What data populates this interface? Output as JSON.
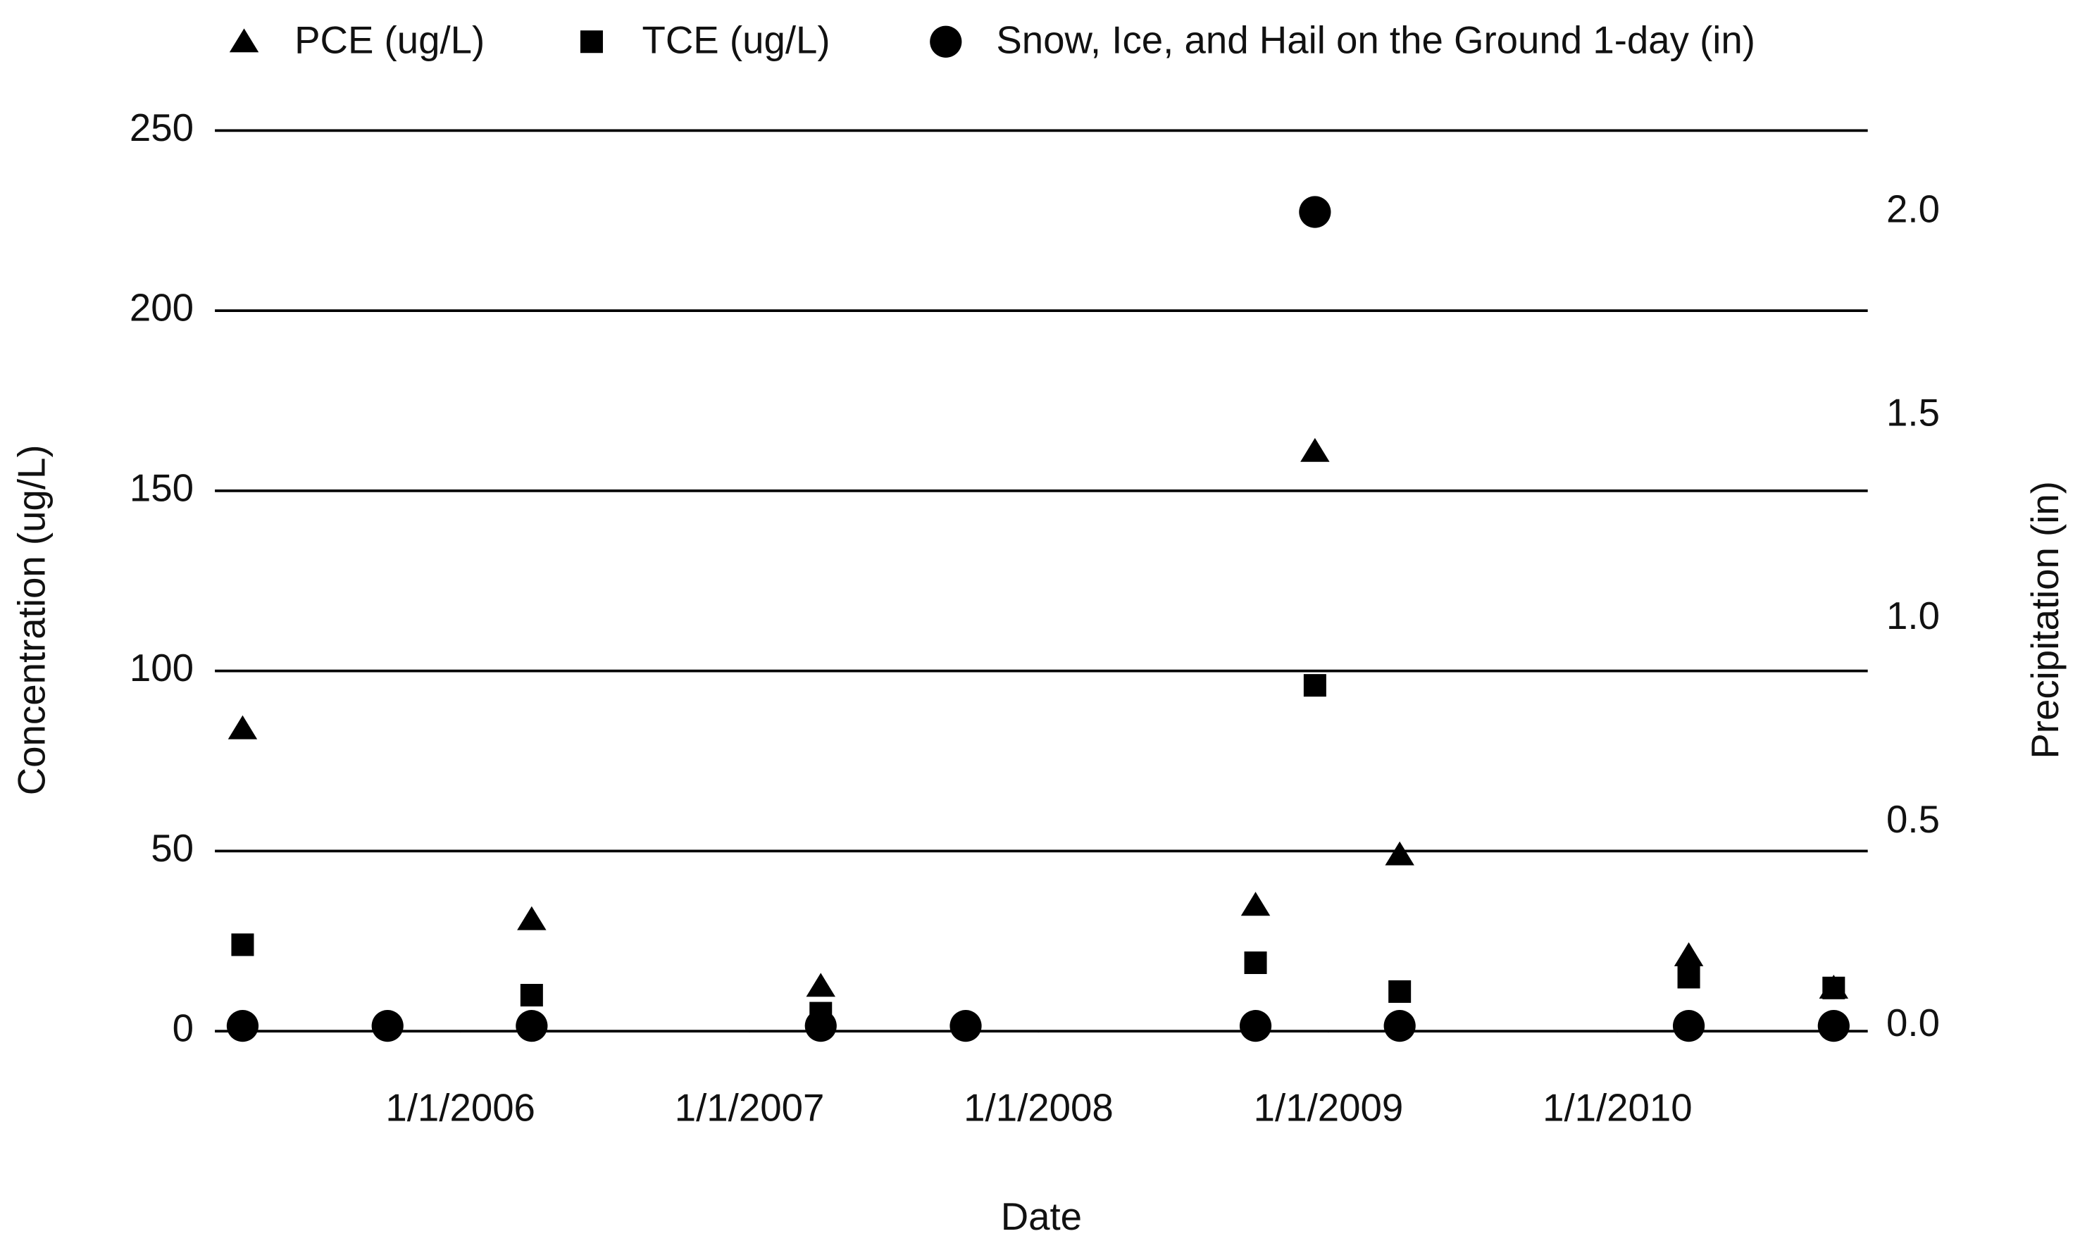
{
  "chart_data": {
    "type": "scatter",
    "x_label": "Date",
    "y_label": "Concentration (ug/L)",
    "y2_label": "Precipitation (in)",
    "x": [
      "4/1/2005",
      "10/1/2005",
      "4/1/2006",
      "4/1/2007",
      "10/1/2007",
      "10/1/2008",
      "12/15/2008",
      "4/1/2009",
      "4/1/2010",
      "10/1/2010"
    ],
    "series": [
      {
        "name": "PCE (ug/L)",
        "color": "#000000",
        "marker": "triangle",
        "values": [
          84,
          null,
          31,
          12.5,
          null,
          35,
          161,
          49,
          21,
          12
        ]
      },
      {
        "name": "TCE (ug/L)",
        "color": "#000000",
        "marker": "square",
        "values": [
          24,
          null,
          10,
          5,
          null,
          19,
          96,
          11,
          15,
          12
        ]
      },
      {
        "name": "Snow, Ice, and Hail on the Ground 1-day (in)",
        "color": "#000000",
        "marker": "circle",
        "axis": "y2",
        "values": [
          0,
          0,
          0,
          0,
          0,
          0,
          2.0,
          0,
          0,
          0
        ]
      }
    ],
    "xlim": [
      "2/25/2005",
      "11/13/2010"
    ],
    "xticks": [
      "1/1/2006",
      "1/1/2007",
      "1/1/2008",
      "1/1/2009",
      "1/1/2010"
    ],
    "ylim": [
      0,
      250
    ],
    "yticks": [
      0,
      50,
      100,
      150,
      200,
      250
    ],
    "y2lim": [
      -0.013,
      2.2
    ],
    "y2ticks": [
      {
        "value": 0,
        "label": "0.0"
      },
      {
        "value": 0.5,
        "label": "0.5"
      },
      {
        "value": 1,
        "label": "1.0"
      },
      {
        "value": 1.5,
        "label": "1.5"
      },
      {
        "value": 2,
        "label": "2.0"
      }
    ],
    "grid": true,
    "legend": "top"
  }
}
